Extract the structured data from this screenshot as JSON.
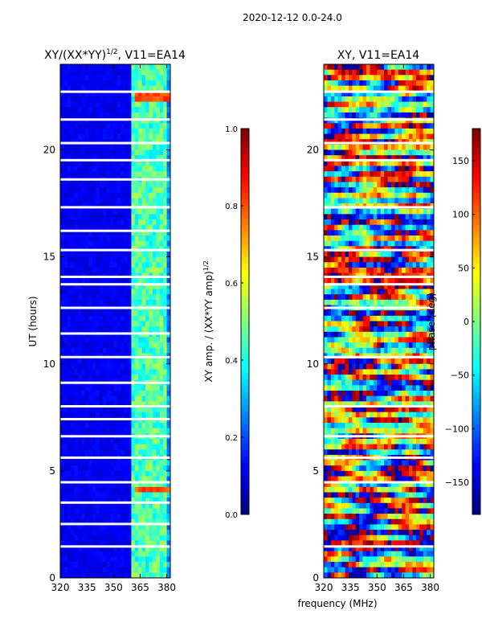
{
  "suptitle": "2020-12-12 0.0-24.0",
  "xlabel_shared": "frequency (MHz)",
  "colors": {
    "jet": [
      "#00007f",
      "#0000ff",
      "#007fff",
      "#00ffff",
      "#7fff7f",
      "#ffff00",
      "#ff7f00",
      "#ff0000",
      "#7f0000"
    ],
    "gap": "#ffffff",
    "bg": "#ffffff"
  },
  "chart_data": [
    {
      "type": "heatmap",
      "title_main": "XY/(XX*YY)",
      "title_sup": "1/2",
      "title_tail": ", V11=EA14",
      "ylabel": "UT (hours)",
      "xlim": [
        320,
        382
      ],
      "ylim": [
        0,
        24
      ],
      "xticks": [
        320,
        335,
        350,
        365,
        380
      ],
      "yticks": [
        0,
        5,
        10,
        15,
        20
      ],
      "colorbar": {
        "label": "XY amp. / (XX*YY amp)",
        "label_sup": "1/2",
        "range": [
          0.0,
          1.0
        ],
        "ticks": [
          0.0,
          0.2,
          0.4,
          0.6,
          0.8,
          1.0
        ],
        "tick_labels": [
          "0.0",
          "0.2",
          "0.4",
          "0.6",
          "0.8",
          "1.0"
        ]
      },
      "bright_channels_mhz": [
        362,
        364,
        367,
        370,
        374,
        378,
        379
      ],
      "data_gaps_hours": [
        1.45,
        2.5,
        3.5,
        4.45,
        5.6,
        6.6,
        7.4,
        8.0,
        9.1,
        10.3,
        11.4,
        12.6,
        13.7,
        14.05,
        15.3,
        16.2,
        17.3,
        18.6,
        19.5,
        20.3,
        21.4,
        22.7
      ]
    },
    {
      "type": "heatmap",
      "title": "XY, V11=EA14",
      "xlim": [
        320,
        382
      ],
      "ylim": [
        0,
        24
      ],
      "xticks": [
        320,
        335,
        350,
        365,
        380
      ],
      "yticks": [
        0,
        5,
        10,
        15,
        20
      ],
      "colorbar": {
        "label": "phase (deg)",
        "range": [
          -180,
          180
        ],
        "ticks": [
          -150,
          -100,
          -50,
          0,
          50,
          100,
          150
        ],
        "tick_labels": [
          "−150",
          "−100",
          "−50",
          "0",
          "50",
          "100",
          "150"
        ]
      },
      "data_gaps_hours": [
        1.45,
        4.45,
        5.6,
        6.6,
        8.0,
        10.3,
        12.6,
        13.7,
        14.05,
        15.3,
        17.3,
        19.5,
        20.3,
        21.4,
        22.7
      ]
    }
  ]
}
